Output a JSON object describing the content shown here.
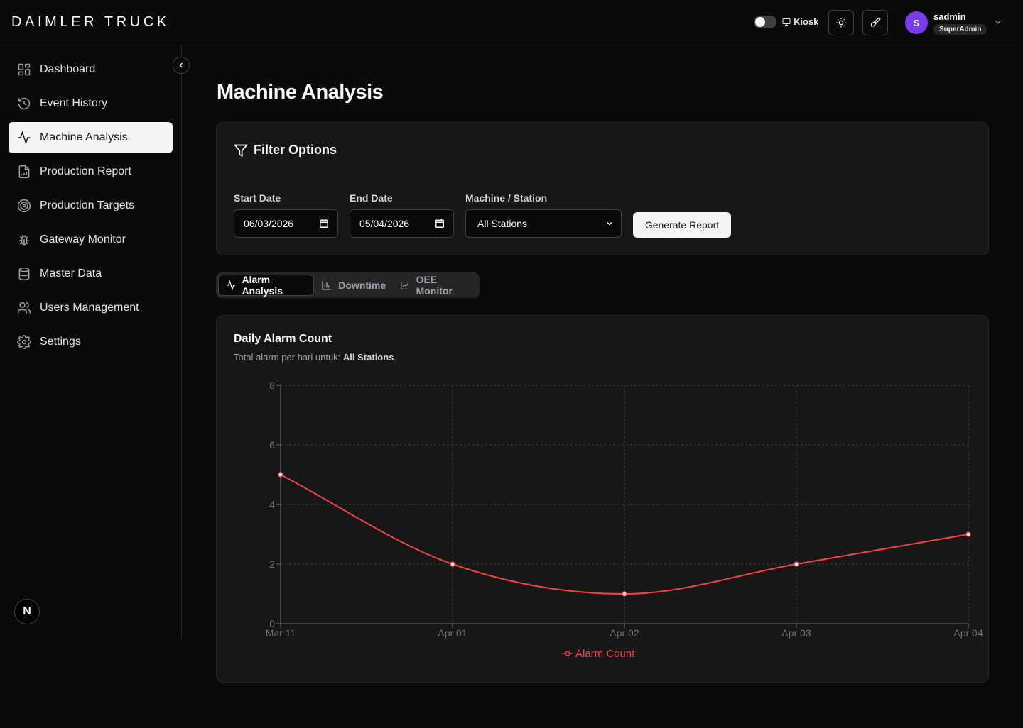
{
  "header": {
    "brand": "DAIMLER TRUCK",
    "kiosk_label": "Kiosk",
    "user": {
      "initial": "S",
      "name": "sadmin",
      "role": "SuperAdmin"
    }
  },
  "sidebar": {
    "items": [
      {
        "label": "Dashboard",
        "icon": "dashboard-icon"
      },
      {
        "label": "Event History",
        "icon": "history-icon"
      },
      {
        "label": "Machine Analysis",
        "icon": "activity-icon",
        "active": true
      },
      {
        "label": "Production Report",
        "icon": "report-icon"
      },
      {
        "label": "Production Targets",
        "icon": "target-icon"
      },
      {
        "label": "Gateway Monitor",
        "icon": "bug-icon"
      },
      {
        "label": "Master Data",
        "icon": "database-icon"
      },
      {
        "label": "Users Management",
        "icon": "users-icon"
      },
      {
        "label": "Settings",
        "icon": "gear-icon"
      }
    ],
    "badge": "N"
  },
  "main": {
    "title": "Machine Analysis",
    "filters": {
      "title": "Filter Options",
      "start_label": "Start Date",
      "start_value": "06/03/2026",
      "end_label": "End Date",
      "end_value": "05/04/2026",
      "station_label": "Machine / Station",
      "station_value": "All Stations",
      "generate_label": "Generate Report"
    },
    "tabs": [
      "Alarm Analysis",
      "Downtime",
      "OEE Monitor"
    ],
    "chart_card": {
      "title": "Daily Alarm Count",
      "subtitle_prefix": "Total alarm per hari untuk: ",
      "subtitle_value": "All Stations",
      "subtitle_suffix": "."
    }
  },
  "chart_data": {
    "type": "line",
    "categories": [
      "Mar 11",
      "Apr 01",
      "Apr 02",
      "Apr 03",
      "Apr 04"
    ],
    "series": [
      {
        "name": "Alarm Count",
        "values": [
          5,
          2,
          1,
          2,
          3
        ],
        "color": "#ef4444"
      }
    ],
    "ylim": [
      0,
      8
    ],
    "yticks": [
      0,
      2,
      4,
      6,
      8
    ],
    "grid": true,
    "legend": "bottom"
  }
}
